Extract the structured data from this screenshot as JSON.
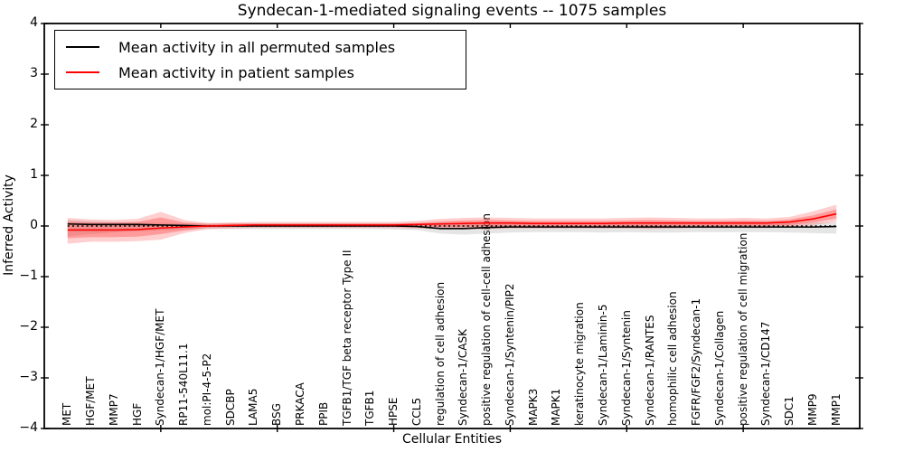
{
  "title": "Syndecan-1-mediated signaling events -- 1075 samples",
  "axes": {
    "x_label": "Cellular Entities",
    "y_label": "Inferred Activity",
    "y_ticks": [
      "4",
      "3",
      "2",
      "1",
      "0",
      "−1",
      "−2",
      "−3",
      "−4"
    ]
  },
  "legend": {
    "entries": [
      {
        "label": "Mean activity in all permuted samples",
        "color": "#000000"
      },
      {
        "label": "Mean activity in patient samples",
        "color": "#ff0000"
      }
    ]
  },
  "chart_data": {
    "type": "line",
    "title": "Syndecan-1-mediated signaling events -- 1075 samples",
    "xlabel": "Cellular Entities",
    "ylabel": "Inferred Activity",
    "ylim": [
      -4,
      4
    ],
    "grid": false,
    "legend_position": "upper left",
    "y_tick_values": [
      4,
      3,
      2,
      1,
      0,
      -1,
      -2,
      -3,
      -4
    ],
    "x_tick_positions": [
      5,
      10,
      15,
      20,
      25,
      30
    ],
    "zero_line": {
      "y": 0,
      "style": "dotted",
      "color": "#000000"
    },
    "categories": [
      "MET",
      "HGF/MET",
      "MMP7",
      "HGF",
      "Syndecan-1/HGF/MET",
      "RP11-540L11.1",
      "mol:PI-4-5-P2",
      "SDCBP",
      "LAMA5",
      "BSG",
      "PRKACA",
      "PPIB",
      "TGFB1/TGF beta receptor Type II",
      "TGFB1",
      "HPSE",
      "CCL5",
      "regulation of cell adhesion",
      "Syndecan-1/CASK",
      "positive regulation of cell-cell adhesion",
      "Syndecan-1/Syntenin/PIP2",
      "MAPK3",
      "MAPK1",
      "keratinocyte migration",
      "Syndecan-1/Laminin-5",
      "Syndecan-1/Syntenin",
      "Syndecan-1/RANTES",
      "homophilic cell adhesion",
      "FGFR/FGF2/Syndecan-1",
      "Syndecan-1/Collagen",
      "positive regulation of cell migration",
      "Syndecan-1/CD147",
      "SDC1",
      "MMP9",
      "MMP1"
    ],
    "bands": [
      {
        "name": "permuted-std-band",
        "fill": "#888888",
        "opacity": 0.22,
        "upper": [
          0.12,
          0.1,
          0.08,
          0.07,
          0.06,
          0.05,
          0.05,
          0.05,
          0.05,
          0.05,
          0.05,
          0.05,
          0.05,
          0.05,
          0.05,
          0.05,
          0.06,
          0.06,
          0.06,
          0.06,
          0.06,
          0.06,
          0.06,
          0.06,
          0.06,
          0.06,
          0.06,
          0.06,
          0.06,
          0.06,
          0.06,
          0.06,
          0.07,
          0.07
        ],
        "lower": [
          -0.2,
          -0.16,
          -0.13,
          -0.11,
          -0.09,
          -0.07,
          -0.06,
          -0.06,
          -0.06,
          -0.06,
          -0.06,
          -0.06,
          -0.06,
          -0.06,
          -0.07,
          -0.08,
          -0.15,
          -0.17,
          -0.15,
          -0.13,
          -0.12,
          -0.12,
          -0.12,
          -0.13,
          -0.12,
          -0.13,
          -0.13,
          -0.12,
          -0.12,
          -0.12,
          -0.12,
          -0.13,
          -0.14,
          -0.15
        ]
      },
      {
        "name": "patient-std-band-outer",
        "fill": "#ff4040",
        "opacity": 0.25,
        "upper": [
          0.16,
          0.13,
          0.12,
          0.14,
          0.28,
          0.12,
          0.06,
          0.07,
          0.08,
          0.08,
          0.08,
          0.08,
          0.08,
          0.08,
          0.08,
          0.1,
          0.14,
          0.16,
          0.17,
          0.16,
          0.15,
          0.15,
          0.15,
          0.15,
          0.16,
          0.17,
          0.16,
          0.15,
          0.15,
          0.16,
          0.15,
          0.18,
          0.29,
          0.42
        ],
        "lower": [
          -0.35,
          -0.31,
          -0.31,
          -0.3,
          -0.27,
          -0.14,
          -0.06,
          -0.05,
          -0.04,
          -0.04,
          -0.04,
          -0.04,
          -0.04,
          -0.04,
          -0.04,
          -0.05,
          -0.06,
          -0.07,
          -0.06,
          -0.05,
          -0.05,
          -0.05,
          -0.05,
          -0.05,
          -0.05,
          -0.06,
          -0.05,
          -0.04,
          -0.04,
          -0.04,
          -0.04,
          -0.02,
          0.02,
          0.08
        ]
      },
      {
        "name": "patient-std-band-inner",
        "fill": "#ff3030",
        "opacity": 0.33,
        "upper": [
          0.09,
          0.07,
          0.07,
          0.08,
          0.17,
          0.07,
          0.04,
          0.05,
          0.05,
          0.05,
          0.05,
          0.05,
          0.05,
          0.05,
          0.05,
          0.06,
          0.09,
          0.11,
          0.12,
          0.11,
          0.1,
          0.1,
          0.1,
          0.1,
          0.11,
          0.12,
          0.11,
          0.1,
          0.1,
          0.11,
          0.1,
          0.13,
          0.21,
          0.33
        ],
        "lower": [
          -0.24,
          -0.22,
          -0.22,
          -0.21,
          -0.16,
          -0.09,
          -0.03,
          -0.02,
          -0.01,
          -0.01,
          -0.01,
          -0.01,
          -0.01,
          -0.01,
          -0.01,
          -0.01,
          -0.02,
          -0.02,
          -0.01,
          -0.01,
          -0.01,
          -0.01,
          -0.01,
          -0.01,
          -0.01,
          -0.01,
          -0.01,
          0.0,
          0.0,
          0.0,
          0.0,
          0.02,
          0.07,
          0.15
        ]
      }
    ],
    "series": [
      {
        "name": "Mean activity in all permuted samples",
        "color": "#000000",
        "width": 1.6,
        "values": [
          0.04,
          0.03,
          0.03,
          0.03,
          0.02,
          0.01,
          0.0,
          0.0,
          0.0,
          0.0,
          0.0,
          0.0,
          0.0,
          0.0,
          0.0,
          -0.01,
          -0.05,
          -0.05,
          -0.03,
          -0.02,
          -0.02,
          -0.02,
          -0.02,
          -0.02,
          -0.02,
          -0.02,
          -0.02,
          -0.02,
          -0.02,
          -0.02,
          -0.02,
          -0.02,
          -0.02,
          -0.01
        ]
      },
      {
        "name": "Mean activity in patient samples",
        "color": "#ff0000",
        "width": 1.6,
        "values": [
          -0.08,
          -0.08,
          -0.08,
          -0.07,
          -0.04,
          -0.02,
          0.0,
          0.01,
          0.02,
          0.02,
          0.02,
          0.02,
          0.02,
          0.02,
          0.02,
          0.03,
          0.04,
          0.05,
          0.06,
          0.06,
          0.05,
          0.05,
          0.05,
          0.05,
          0.06,
          0.06,
          0.06,
          0.06,
          0.06,
          0.06,
          0.06,
          0.08,
          0.14,
          0.24
        ]
      }
    ]
  }
}
